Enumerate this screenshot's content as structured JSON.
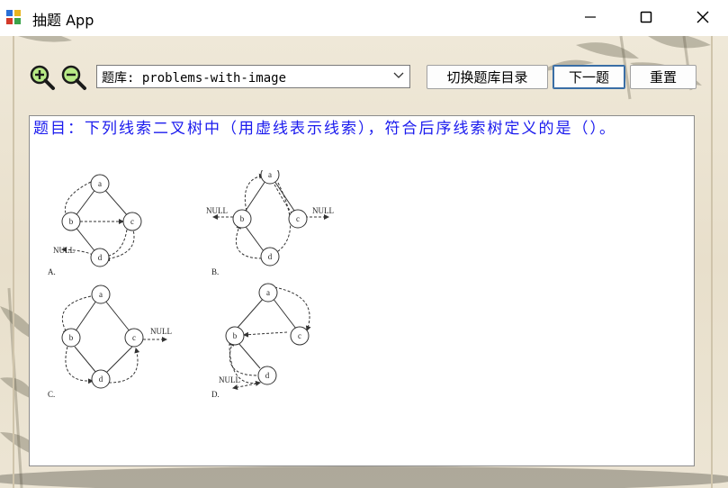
{
  "window": {
    "title": "抽题 App"
  },
  "toolbar": {
    "zoom_in_icon": "zoom-in-icon",
    "zoom_out_icon": "zoom-out-icon",
    "bank_select_value": "题库: problems-with-image",
    "switch_dir_label": "切换题库目录",
    "next_label": "下一题",
    "reset_label": "重置"
  },
  "question": {
    "text": "题目：下列线索二叉树中（用虚线表示线索），符合后序线索树定义的是（）。"
  },
  "figure": {
    "option_labels": [
      "A.",
      "B.",
      "C.",
      "D."
    ],
    "null_label": "NULL",
    "nodes": [
      "a",
      "b",
      "c",
      "d"
    ]
  },
  "colors": {
    "question_text": "#1a1aee",
    "accent": "#3a6ea5"
  }
}
